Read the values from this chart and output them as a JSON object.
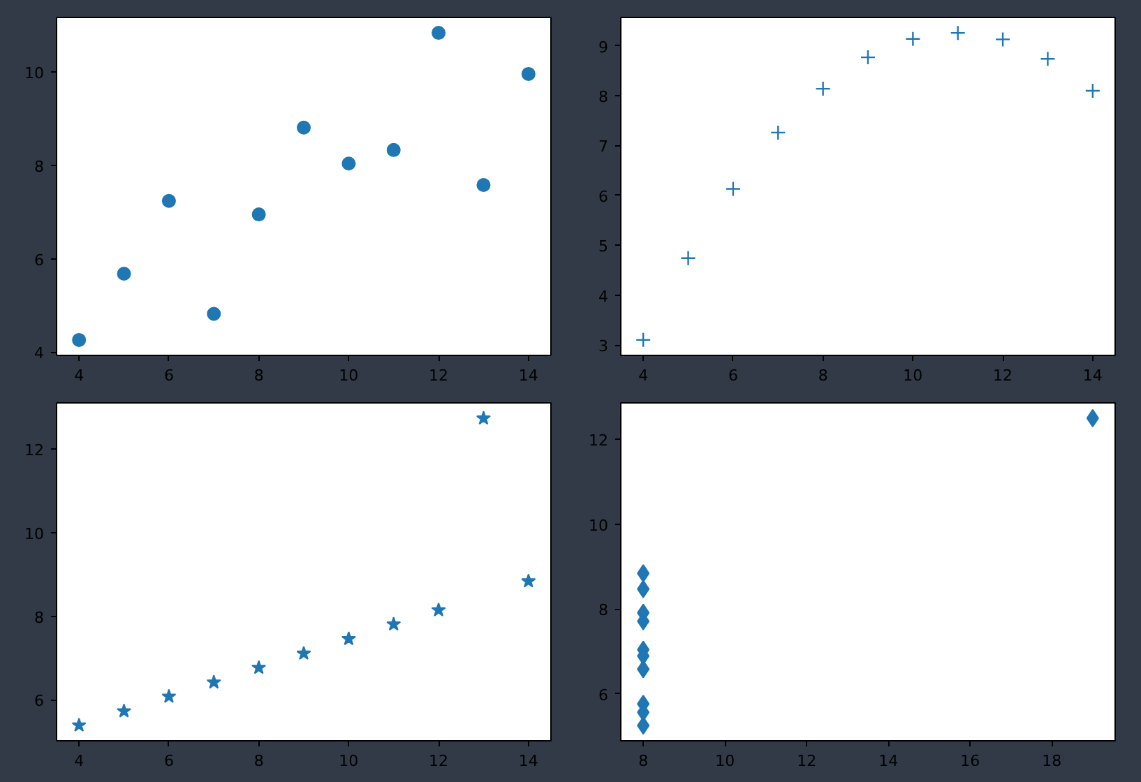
{
  "chart_data": [
    {
      "type": "scatter",
      "x": [
        10,
        8,
        13,
        9,
        11,
        14,
        6,
        4,
        12,
        7,
        5
      ],
      "values": [
        8.04,
        6.95,
        7.58,
        8.81,
        8.33,
        9.96,
        7.24,
        4.26,
        10.84,
        4.82,
        5.68
      ],
      "color": "#1f77b4",
      "marker": "circle",
      "xlim": [
        3.5,
        14.5
      ],
      "ylim": [
        3.93,
        11.17
      ],
      "xticks": [
        4,
        6,
        8,
        10,
        12,
        14
      ],
      "yticks": [
        4,
        6,
        8,
        10
      ],
      "grid": false
    },
    {
      "type": "scatter",
      "x": [
        10,
        8,
        13,
        9,
        11,
        14,
        6,
        4,
        12,
        7,
        5
      ],
      "values": [
        9.14,
        8.14,
        8.74,
        8.77,
        9.26,
        8.1,
        6.13,
        3.1,
        9.13,
        7.26,
        4.74
      ],
      "color": "#1f77b4",
      "marker": "cross",
      "xlim": [
        3.5,
        14.5
      ],
      "ylim": [
        2.79,
        9.57
      ],
      "xticks": [
        4,
        6,
        8,
        10,
        12,
        14
      ],
      "yticks": [
        3,
        4,
        5,
        6,
        7,
        8,
        9
      ],
      "grid": false
    },
    {
      "type": "scatter",
      "x": [
        10,
        8,
        13,
        9,
        11,
        14,
        6,
        4,
        12,
        7,
        5
      ],
      "values": [
        7.46,
        6.77,
        12.74,
        7.11,
        7.81,
        8.84,
        6.08,
        5.39,
        8.15,
        6.42,
        5.73
      ],
      "color": "#1f77b4",
      "marker": "star",
      "xlim": [
        3.5,
        14.5
      ],
      "ylim": [
        5.02,
        13.11
      ],
      "xticks": [
        4,
        6,
        8,
        10,
        12,
        14
      ],
      "yticks": [
        6,
        8,
        10,
        12
      ],
      "grid": false
    },
    {
      "type": "scatter",
      "x": [
        8,
        8,
        8,
        8,
        8,
        8,
        8,
        19,
        8,
        8,
        8
      ],
      "values": [
        6.58,
        5.76,
        7.71,
        8.84,
        8.47,
        7.04,
        5.25,
        12.5,
        5.56,
        7.91,
        6.89
      ],
      "color": "#1f77b4",
      "marker": "diamond",
      "xlim": [
        7.45,
        19.55
      ],
      "ylim": [
        4.89,
        12.86
      ],
      "xticks": [
        8,
        10,
        12,
        14,
        16,
        18
      ],
      "yticks": [
        6,
        8,
        10,
        12
      ],
      "grid": false
    }
  ]
}
